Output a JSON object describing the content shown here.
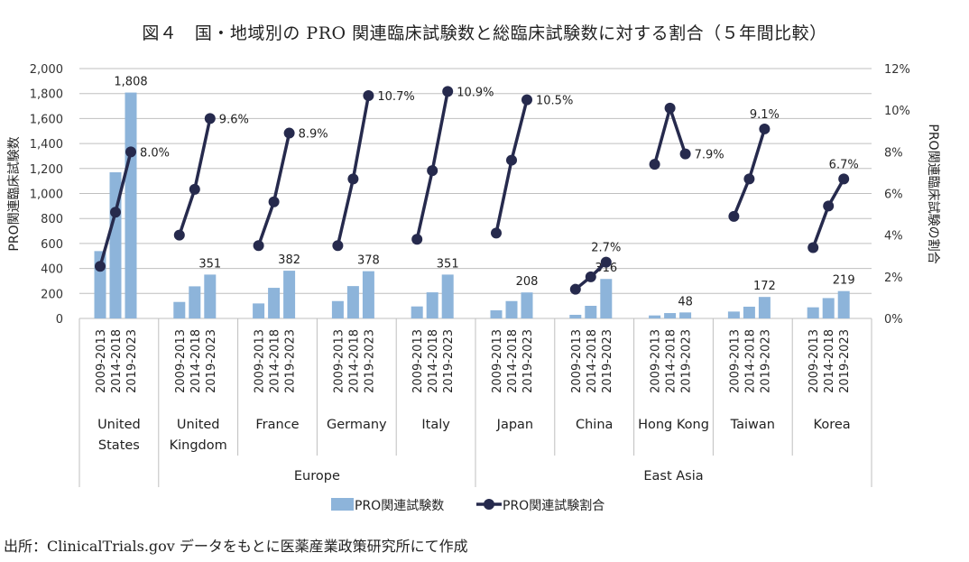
{
  "chart_data": {
    "type": "bar+line",
    "title": "図４　国・地域別の PRO 関連臨床試験数と総臨床試験数に対する割合（５年間比較）",
    "ylabel": "PRO関連臨床試験数",
    "y2label": "PRO関連臨床試験の割合",
    "ylim": [
      0,
      2000
    ],
    "y2lim": [
      0,
      12
    ],
    "yticks": [
      "0",
      "200",
      "400",
      "600",
      "800",
      "1,000",
      "1,200",
      "1,400",
      "1,600",
      "1,800",
      "2,000"
    ],
    "y2ticks": [
      "0%",
      "2%",
      "4%",
      "6%",
      "8%",
      "10%",
      "12%"
    ],
    "grid": true,
    "legend_position": "bottom",
    "periods": [
      "2009-2013",
      "2014-2018",
      "2019-2023"
    ],
    "countries": [
      "United States",
      "United Kingdom",
      "France",
      "Germany",
      "Italy",
      "Japan",
      "China",
      "Hong Kong",
      "Taiwan",
      "Korea"
    ],
    "country_lines": [
      [
        "United",
        "States"
      ],
      [
        "United",
        "Kingdom"
      ],
      [
        "France"
      ],
      [
        "Germany"
      ],
      [
        "Italy"
      ],
      [
        "Japan"
      ],
      [
        "China"
      ],
      [
        "Hong Kong"
      ],
      [
        "Taiwan"
      ],
      [
        "Korea"
      ]
    ],
    "regions": [
      {
        "name": "Europe",
        "from": 1,
        "to": 4
      },
      {
        "name": "East Asia",
        "from": 5,
        "to": 9
      }
    ],
    "series": [
      {
        "name": "PRO関連試験数",
        "type": "bar",
        "color": "#8db4da",
        "values": [
          [
            539,
            1170,
            1808
          ],
          [
            132,
            257,
            351
          ],
          [
            120,
            245,
            382
          ],
          [
            139,
            259,
            378
          ],
          [
            96,
            209,
            351
          ],
          [
            65,
            139,
            208
          ],
          [
            29,
            101,
            316
          ],
          [
            24,
            43,
            48
          ],
          [
            55,
            94,
            172
          ],
          [
            89,
            163,
            219
          ]
        ],
        "labels": [
          "1,808",
          "351",
          "382",
          "378",
          "351",
          "208",
          "316",
          "48",
          "172",
          "219"
        ]
      },
      {
        "name": "PRO関連試験割合",
        "type": "line",
        "color": "#262a4d",
        "values": [
          [
            2.5,
            5.1,
            8.0
          ],
          [
            4.0,
            6.2,
            9.6
          ],
          [
            3.5,
            5.6,
            8.9
          ],
          [
            3.5,
            6.7,
            10.7
          ],
          [
            3.8,
            7.1,
            10.9
          ],
          [
            4.1,
            7.6,
            10.5
          ],
          [
            1.4,
            2.0,
            2.7
          ],
          [
            7.4,
            10.1,
            7.9
          ],
          [
            4.9,
            6.7,
            9.1
          ],
          [
            3.4,
            5.4,
            6.7
          ]
        ],
        "labels": [
          "8.0%",
          "9.6%",
          "8.9%",
          "10.7%",
          "10.9%",
          "10.5%",
          "2.7%",
          "7.9%",
          "9.1%",
          "6.7%"
        ]
      }
    ]
  },
  "source": "出所：ClinicalTrials.gov データをもとに医薬産業政策研究所にて作成"
}
